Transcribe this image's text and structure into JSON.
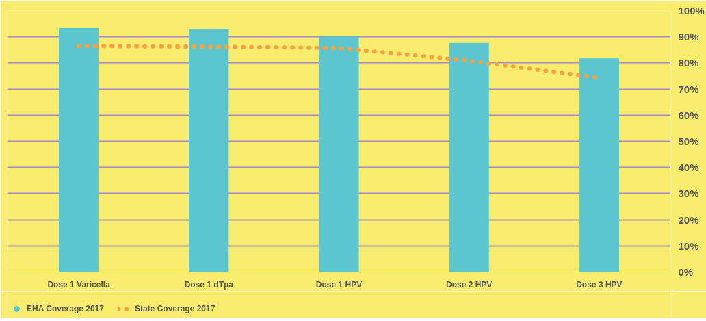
{
  "chart_data": {
    "type": "bar",
    "categories": [
      "Dose 1 Varicella",
      "Dose 1 dTpa",
      "Dose 1 HPV",
      "Dose 2 HPV",
      "Dose 3 HPV"
    ],
    "series": [
      {
        "name": "EHA Coverage 2017",
        "color": "#5bc5d0",
        "values": [
          93.2,
          92.7,
          89.9,
          87.5,
          81.6
        ]
      },
      {
        "name": "State Coverage 2017",
        "type": "line",
        "color": "#f4a340",
        "line_style": "dotted",
        "values": [
          86.5,
          86.2,
          85.7,
          80.8,
          74.3
        ]
      }
    ],
    "ylim": [
      0,
      100
    ],
    "yticks": [
      {
        "value": 0,
        "label": "0%"
      },
      {
        "value": 10,
        "label": "10%"
      },
      {
        "value": 20,
        "label": "20%"
      },
      {
        "value": 30,
        "label": "30%"
      },
      {
        "value": 40,
        "label": "40%"
      },
      {
        "value": 50,
        "label": "50%"
      },
      {
        "value": 60,
        "label": "60%"
      },
      {
        "value": 70,
        "label": "70%"
      },
      {
        "value": 80,
        "label": "80%"
      },
      {
        "value": 90,
        "label": "90%"
      },
      {
        "value": 100,
        "label": "100%"
      }
    ],
    "grid": "y",
    "legend": "bottom left"
  }
}
